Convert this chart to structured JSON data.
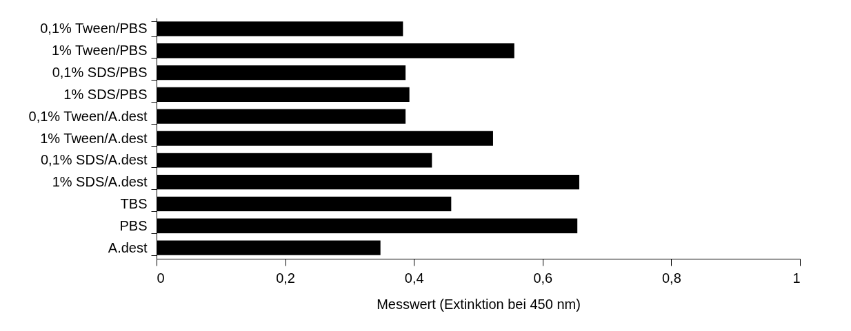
{
  "chart_data": {
    "type": "bar",
    "orientation": "horizontal",
    "xlabel": "Messwert (Extinktion bei 450 nm)",
    "categories": [
      "0,1% Tween/PBS",
      "1% Tween/PBS",
      "0,1% SDS/PBS",
      "1% SDS/PBS",
      "0,1% Tween/A.dest",
      "1% Tween/A.dest",
      "0,1% SDS/A.dest",
      "1% SDS/A.dest",
      "TBS",
      "PBS",
      "A.dest"
    ],
    "values": [
      0.383,
      0.556,
      0.387,
      0.393,
      0.387,
      0.523,
      0.428,
      0.657,
      0.458,
      0.654,
      0.348
    ],
    "color": "#000000",
    "xlim": [
      0,
      1
    ],
    "xticks": [
      {
        "value": 0,
        "label": "0"
      },
      {
        "value": 0.2,
        "label": "0,2"
      },
      {
        "value": 0.4,
        "label": "0,4"
      },
      {
        "value": 0.6,
        "label": "0,6"
      },
      {
        "value": 0.8,
        "label": "0,8"
      },
      {
        "value": 1,
        "label": "1"
      }
    ],
    "grid": false
  }
}
